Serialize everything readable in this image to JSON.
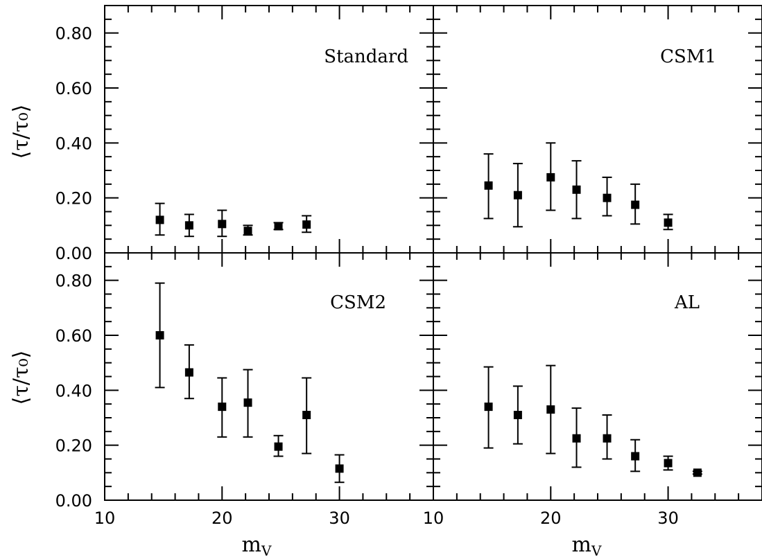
{
  "chart_data": [
    {
      "type": "scatter",
      "panel": "top-left",
      "panel_label": "Standard",
      "x": [
        14.7,
        17.2,
        20.0,
        22.2,
        24.8,
        27.2
      ],
      "y": [
        0.12,
        0.1,
        0.105,
        0.08,
        0.097,
        0.103
      ],
      "y_err_low": [
        0.065,
        0.06,
        0.06,
        0.065,
        0.085,
        0.075
      ],
      "y_err_high": [
        0.18,
        0.14,
        0.155,
        0.1,
        0.11,
        0.135
      ],
      "xlim": [
        10,
        38
      ],
      "ylim": [
        0,
        0.9
      ]
    },
    {
      "type": "scatter",
      "panel": "top-right",
      "panel_label": "CSM1",
      "x": [
        14.7,
        17.2,
        20.0,
        22.2,
        24.8,
        27.2,
        30.0
      ],
      "y": [
        0.245,
        0.21,
        0.275,
        0.23,
        0.2,
        0.175,
        0.11
      ],
      "y_err_low": [
        0.125,
        0.095,
        0.155,
        0.125,
        0.135,
        0.105,
        0.085
      ],
      "y_err_high": [
        0.36,
        0.325,
        0.4,
        0.335,
        0.275,
        0.25,
        0.14
      ],
      "xlim": [
        10,
        38
      ],
      "ylim": [
        0,
        0.9
      ]
    },
    {
      "type": "scatter",
      "panel": "bottom-left",
      "panel_label": "CSM2",
      "x": [
        14.7,
        17.2,
        20.0,
        22.2,
        24.8,
        27.2,
        30.0
      ],
      "y": [
        0.6,
        0.465,
        0.34,
        0.355,
        0.195,
        0.31,
        0.115
      ],
      "y_err_low": [
        0.41,
        0.37,
        0.23,
        0.23,
        0.16,
        0.17,
        0.065
      ],
      "y_err_high": [
        0.79,
        0.565,
        0.445,
        0.475,
        0.235,
        0.445,
        0.165
      ],
      "xlim": [
        10,
        38
      ],
      "ylim": [
        0,
        0.9
      ]
    },
    {
      "type": "scatter",
      "panel": "bottom-right",
      "panel_label": "AL",
      "x": [
        14.7,
        17.2,
        20.0,
        22.2,
        24.8,
        27.2,
        30.0,
        32.5
      ],
      "y": [
        0.34,
        0.31,
        0.33,
        0.225,
        0.225,
        0.16,
        0.135,
        0.1
      ],
      "y_err_low": [
        0.19,
        0.205,
        0.17,
        0.12,
        0.15,
        0.105,
        0.11,
        0.095
      ],
      "y_err_high": [
        0.485,
        0.415,
        0.49,
        0.335,
        0.31,
        0.22,
        0.16,
        0.105
      ],
      "xlim": [
        10,
        38
      ],
      "ylim": [
        0,
        0.9
      ]
    }
  ],
  "axes": {
    "y_ticks": [
      "0.00",
      "0.20",
      "0.40",
      "0.60",
      "0.80"
    ],
    "y_tick_values": [
      0,
      0.2,
      0.4,
      0.6,
      0.8
    ],
    "x_ticks": [
      "10",
      "20",
      "30"
    ],
    "x_tick_values": [
      10,
      20,
      30
    ],
    "x_label_main": "m",
    "x_label_sub": "V",
    "y_label": "⟨τ/τ₀⟩"
  },
  "style": {
    "marker_color": "#000000",
    "line_color": "#000000"
  }
}
